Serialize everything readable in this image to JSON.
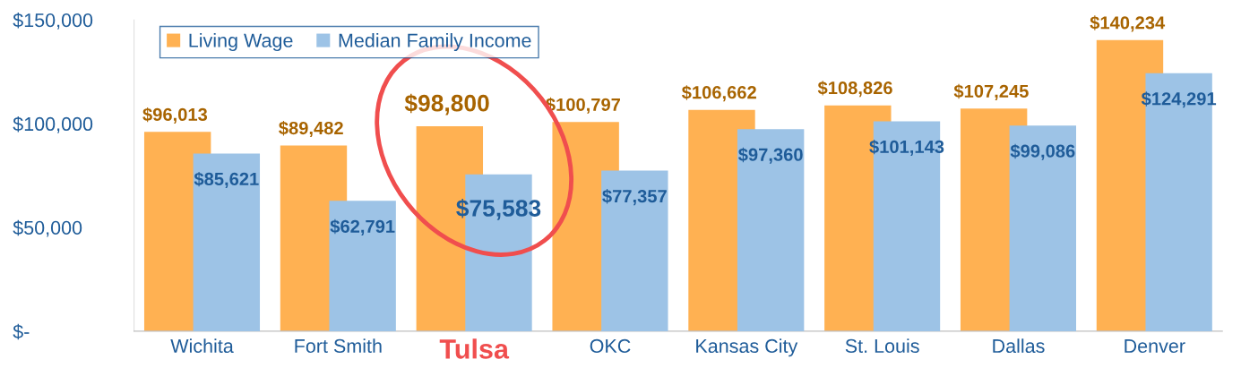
{
  "chart_data": {
    "type": "bar",
    "categories": [
      "Wichita",
      "Fort Smith",
      "Tulsa",
      "OKC",
      "Kansas City",
      "St. Louis",
      "Dallas",
      "Denver"
    ],
    "series": [
      {
        "name": "Living Wage",
        "color": "#ffb152",
        "values": [
          96013,
          89482,
          98800,
          100797,
          106662,
          108826,
          107245,
          140234
        ],
        "value_labels": [
          "$96,013",
          "$89,482",
          "$98,800",
          "$100,797",
          "$106,662",
          "$108,826",
          "$107,245",
          "$140,234"
        ]
      },
      {
        "name": "Median Family Income",
        "color": "#9dc3e6",
        "values": [
          85621,
          62791,
          75583,
          77357,
          97360,
          101143,
          99086,
          124291
        ],
        "value_labels": [
          "$85,621",
          "$62,791",
          "$75,583",
          "$77,357",
          "$97,360",
          "$101,143",
          "$99,086",
          "$124,291"
        ]
      }
    ],
    "ylim": [
      0,
      150000
    ],
    "yticks": [
      {
        "value": 0,
        "label": "$-"
      },
      {
        "value": 50000,
        "label": "$50,000"
      },
      {
        "value": 100000,
        "label": "$100,000"
      },
      {
        "value": 150000,
        "label": "$150,000"
      }
    ],
    "grid": false,
    "legend": "top left"
  }
}
